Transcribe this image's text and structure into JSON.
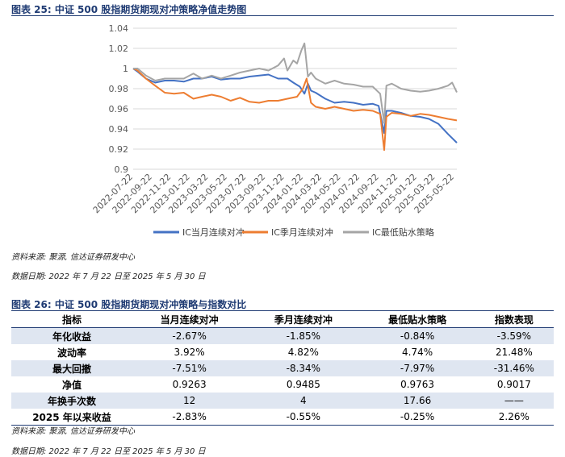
{
  "fig1": {
    "title": "图表 25:  中证 500 股指期货期现对冲策略净值走势图",
    "source": "资料来源:  聚源, 信达证券研发中心",
    "date": "数据日期:  2022 年 7 月 22 日至 2025 年 5 月 30 日"
  },
  "chart_data": {
    "type": "line",
    "title": "",
    "xlabel": "",
    "ylabel": "",
    "ylim": [
      0.9,
      1.04
    ],
    "yticks": [
      "0.9",
      "0.92",
      "0.94",
      "0.96",
      "0.98",
      "1",
      "1.02",
      "1.04"
    ],
    "xticks": [
      "2022-07-22",
      "2022-09-22",
      "2022-11-22",
      "2023-01-22",
      "2023-03-22",
      "2023-05-22",
      "2023-07-22",
      "2023-09-22",
      "2023-11-22",
      "2024-01-22",
      "2024-03-22",
      "2024-05-22",
      "2024-07-22",
      "2024-09-22",
      "2024-11-22",
      "2025-01-22",
      "2025-03-22",
      "2025-05-22"
    ],
    "x_range": [
      "2022-07-22",
      "2025-05-30"
    ],
    "grid": "horizontal",
    "legend_position": "bottom",
    "series": [
      {
        "name": "IC当月连续对冲",
        "color": "#4472c4",
        "points": [
          [
            "2022-07-22",
            1.0
          ],
          [
            "2022-08-05",
            0.997
          ],
          [
            "2022-09-01",
            0.99
          ],
          [
            "2022-10-01",
            0.986
          ],
          [
            "2022-11-01",
            0.988
          ],
          [
            "2022-12-01",
            0.988
          ],
          [
            "2023-01-01",
            0.987
          ],
          [
            "2023-02-01",
            0.99
          ],
          [
            "2023-03-01",
            0.99
          ],
          [
            "2023-04-01",
            0.992
          ],
          [
            "2023-05-01",
            0.989
          ],
          [
            "2023-06-01",
            0.99
          ],
          [
            "2023-07-01",
            0.99
          ],
          [
            "2023-08-01",
            0.992
          ],
          [
            "2023-09-01",
            0.993
          ],
          [
            "2023-10-01",
            0.994
          ],
          [
            "2023-11-01",
            0.99
          ],
          [
            "2023-12-01",
            0.99
          ],
          [
            "2023-12-20",
            0.986
          ],
          [
            "2024-01-10",
            0.982
          ],
          [
            "2024-01-25",
            0.975
          ],
          [
            "2024-02-05",
            0.985
          ],
          [
            "2024-02-15",
            0.978
          ],
          [
            "2024-03-01",
            0.976
          ],
          [
            "2024-04-01",
            0.97
          ],
          [
            "2024-05-01",
            0.966
          ],
          [
            "2024-06-01",
            0.967
          ],
          [
            "2024-07-01",
            0.966
          ],
          [
            "2024-08-01",
            0.964
          ],
          [
            "2024-09-01",
            0.965
          ],
          [
            "2024-09-20",
            0.963
          ],
          [
            "2024-10-08",
            0.936
          ],
          [
            "2024-10-15",
            0.958
          ],
          [
            "2024-11-01",
            0.958
          ],
          [
            "2024-12-01",
            0.956
          ],
          [
            "2025-01-01",
            0.953
          ],
          [
            "2025-02-01",
            0.952
          ],
          [
            "2025-03-01",
            0.95
          ],
          [
            "2025-04-01",
            0.945
          ],
          [
            "2025-05-01",
            0.935
          ],
          [
            "2025-05-30",
            0.9263
          ]
        ]
      },
      {
        "name": "IC季月连续对冲",
        "color": "#ed7d31",
        "points": [
          [
            "2022-07-22",
            1.0
          ],
          [
            "2022-08-05",
            0.998
          ],
          [
            "2022-09-01",
            0.99
          ],
          [
            "2022-10-01",
            0.983
          ],
          [
            "2022-11-01",
            0.976
          ],
          [
            "2022-12-01",
            0.975
          ],
          [
            "2023-01-01",
            0.976
          ],
          [
            "2023-02-01",
            0.97
          ],
          [
            "2023-03-01",
            0.972
          ],
          [
            "2023-04-01",
            0.974
          ],
          [
            "2023-05-01",
            0.972
          ],
          [
            "2023-06-01",
            0.968
          ],
          [
            "2023-07-01",
            0.971
          ],
          [
            "2023-08-01",
            0.967
          ],
          [
            "2023-09-01",
            0.966
          ],
          [
            "2023-10-01",
            0.968
          ],
          [
            "2023-11-01",
            0.968
          ],
          [
            "2023-12-01",
            0.97
          ],
          [
            "2024-01-01",
            0.972
          ],
          [
            "2024-01-20",
            0.98
          ],
          [
            "2024-02-01",
            0.99
          ],
          [
            "2024-02-15",
            0.966
          ],
          [
            "2024-03-01",
            0.962
          ],
          [
            "2024-04-01",
            0.96
          ],
          [
            "2024-05-01",
            0.962
          ],
          [
            "2024-06-01",
            0.96
          ],
          [
            "2024-07-01",
            0.958
          ],
          [
            "2024-08-01",
            0.959
          ],
          [
            "2024-09-01",
            0.958
          ],
          [
            "2024-09-25",
            0.955
          ],
          [
            "2024-10-08",
            0.919
          ],
          [
            "2024-10-15",
            0.952
          ],
          [
            "2024-11-01",
            0.956
          ],
          [
            "2024-12-01",
            0.955
          ],
          [
            "2025-01-01",
            0.953
          ],
          [
            "2025-02-01",
            0.955
          ],
          [
            "2025-03-01",
            0.954
          ],
          [
            "2025-04-01",
            0.952
          ],
          [
            "2025-05-01",
            0.95
          ],
          [
            "2025-05-30",
            0.9485
          ]
        ]
      },
      {
        "name": "IC最低贴水策略",
        "color": "#a5a5a5",
        "points": [
          [
            "2022-07-22",
            1.0
          ],
          [
            "2022-08-05",
            1.0
          ],
          [
            "2022-09-01",
            0.993
          ],
          [
            "2022-10-01",
            0.988
          ],
          [
            "2022-11-01",
            0.99
          ],
          [
            "2022-12-01",
            0.99
          ],
          [
            "2023-01-01",
            0.99
          ],
          [
            "2023-02-01",
            0.995
          ],
          [
            "2023-03-01",
            0.99
          ],
          [
            "2023-04-01",
            0.993
          ],
          [
            "2023-05-01",
            0.99
          ],
          [
            "2023-06-01",
            0.993
          ],
          [
            "2023-07-01",
            0.996
          ],
          [
            "2023-08-01",
            0.998
          ],
          [
            "2023-09-01",
            1.0
          ],
          [
            "2023-10-01",
            0.998
          ],
          [
            "2023-11-01",
            1.003
          ],
          [
            "2023-11-20",
            1.01
          ],
          [
            "2023-12-01",
            0.998
          ],
          [
            "2023-12-20",
            1.008
          ],
          [
            "2024-01-01",
            1.005
          ],
          [
            "2024-01-15",
            1.018
          ],
          [
            "2024-01-25",
            1.025
          ],
          [
            "2024-02-05",
            0.992
          ],
          [
            "2024-02-15",
            0.996
          ],
          [
            "2024-03-01",
            0.99
          ],
          [
            "2024-04-01",
            0.985
          ],
          [
            "2024-05-01",
            0.988
          ],
          [
            "2024-06-01",
            0.985
          ],
          [
            "2024-07-01",
            0.984
          ],
          [
            "2024-08-01",
            0.982
          ],
          [
            "2024-09-01",
            0.982
          ],
          [
            "2024-09-25",
            0.975
          ],
          [
            "2024-10-08",
            0.946
          ],
          [
            "2024-10-15",
            0.983
          ],
          [
            "2024-11-01",
            0.985
          ],
          [
            "2024-12-01",
            0.98
          ],
          [
            "2025-01-01",
            0.978
          ],
          [
            "2025-02-01",
            0.977
          ],
          [
            "2025-03-01",
            0.978
          ],
          [
            "2025-04-01",
            0.98
          ],
          [
            "2025-05-01",
            0.983
          ],
          [
            "2025-05-15",
            0.986
          ],
          [
            "2025-05-30",
            0.9763
          ]
        ]
      }
    ]
  },
  "fig2": {
    "title": "图表 26:  中证 500 股指期货期现对冲策略与指数对比",
    "source": "资料来源:  聚源, 信达证券研发中心",
    "date": "数据日期:  2022 年 7 月 22 日至 2025 年 5 月 30 日"
  },
  "table": {
    "headers": [
      "指标",
      "当月连续对冲",
      "季月连续对冲",
      "最低贴水策略",
      "指数表现"
    ],
    "rows": [
      [
        "年化收益",
        "-2.67%",
        "-1.85%",
        "-0.84%",
        "-3.59%"
      ],
      [
        "波动率",
        "3.92%",
        "4.82%",
        "4.74%",
        "21.48%"
      ],
      [
        "最大回撤",
        "-7.51%",
        "-8.34%",
        "-7.97%",
        "-31.46%"
      ],
      [
        "净值",
        "0.9263",
        "0.9485",
        "0.9763",
        "0.9017"
      ],
      [
        "年换手次数",
        "12",
        "4",
        "17.66",
        "——"
      ],
      [
        "2025 年以来收益",
        "-2.83%",
        "-0.55%",
        "-0.25%",
        "2.26%"
      ]
    ]
  }
}
